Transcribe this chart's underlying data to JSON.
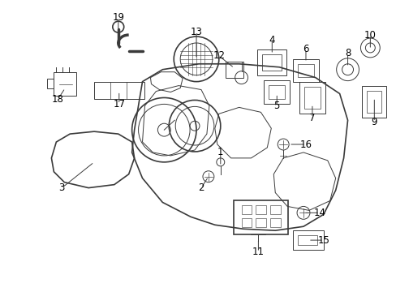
{
  "bg_color": "#ffffff",
  "line_color": "#3a3a3a",
  "label_color": "#000000",
  "figsize": [
    4.89,
    3.6
  ],
  "dpi": 100
}
